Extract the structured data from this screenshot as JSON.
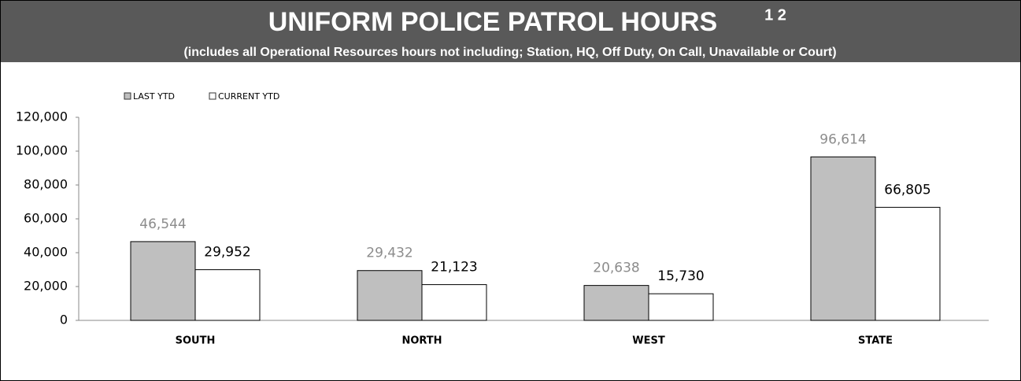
{
  "chart_data": {
    "type": "bar",
    "title": "UNIFORM POLICE PATROL HOURS",
    "title_notes": "1 2",
    "subtitle": "(includes all Operational Resources hours not including; Station, HQ, Off Duty, On Call, Unavailable or Court)",
    "categories": [
      "SOUTH",
      "NORTH",
      "WEST",
      "STATE"
    ],
    "series": [
      {
        "name": "LAST YTD",
        "color": "#bfbfbf",
        "label_color": "#8c8c8c",
        "values": [
          46544,
          29432,
          20638,
          96614
        ],
        "value_labels": [
          "46,544",
          "29,432",
          "20,638",
          "96,614"
        ]
      },
      {
        "name": "CURRENT YTD",
        "color": "#ffffff",
        "label_color": "#000000",
        "values": [
          29952,
          21123,
          15730,
          66805
        ],
        "value_labels": [
          "29,952",
          "21,123",
          "15,730",
          "66,805"
        ]
      }
    ],
    "ylim": [
      0,
      120000
    ],
    "yticks": [
      0,
      {
        "value": 20000,
        "label": "20,000"
      },
      {
        "value": 40000,
        "label": "40,000"
      },
      {
        "value": 60000,
        "label": "60,000"
      },
      {
        "value": 80000,
        "label": "80,000"
      },
      {
        "value": 100000,
        "label": "100,000"
      },
      {
        "value": 120000,
        "label": "120,000"
      }
    ],
    "legend": "top-left"
  }
}
